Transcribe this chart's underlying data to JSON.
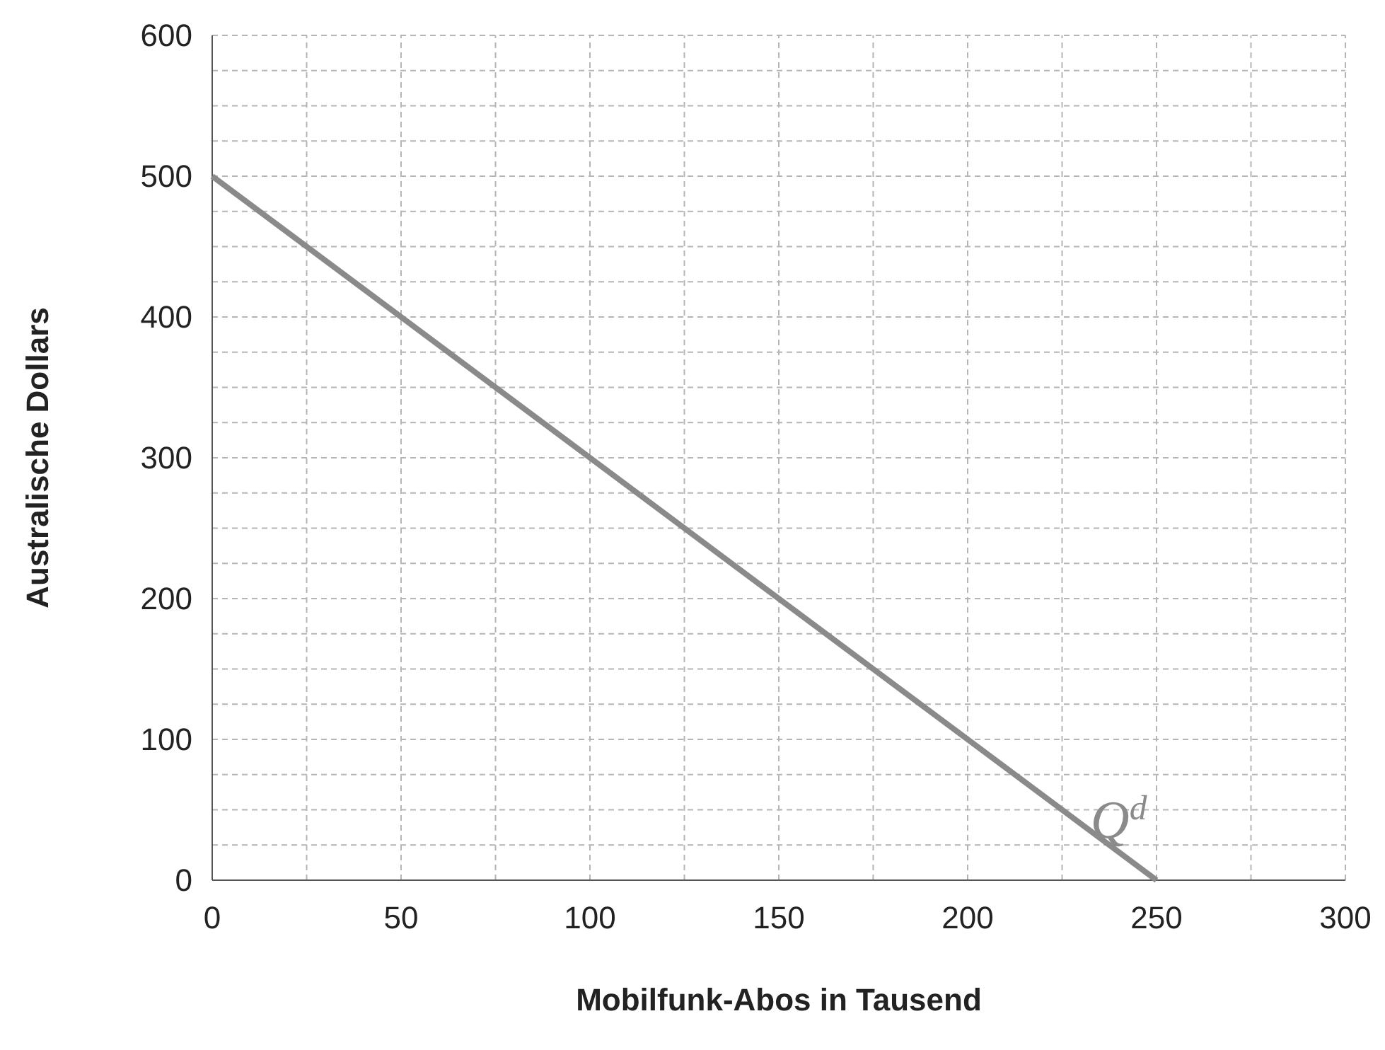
{
  "chart_data": {
    "type": "line",
    "xlabel": "Mobilfunk-Abos in Tausend",
    "ylabel": "Australische Dollars",
    "x": [
      0,
      250
    ],
    "series": [
      {
        "color": "#8a8a8a",
        "values": [
          500,
          0
        ]
      }
    ],
    "xlim": [
      0,
      300
    ],
    "ylim": [
      0,
      600
    ],
    "xticks": [
      0,
      {
        "value": 25,
        "label": null
      },
      50,
      {
        "value": 75,
        "label": null
      },
      100,
      {
        "value": 125,
        "label": null
      },
      150,
      {
        "value": 175,
        "label": null
      },
      200,
      {
        "value": 225,
        "label": null
      },
      250,
      {
        "value": 275,
        "label": null
      },
      300
    ],
    "yticks": [
      0,
      {
        "value": 25,
        "label": null
      },
      {
        "value": 50,
        "label": null
      },
      {
        "value": 75,
        "label": null
      },
      100,
      {
        "value": 125,
        "label": null
      },
      {
        "value": 150,
        "label": null
      },
      {
        "value": 175,
        "label": null
      },
      200,
      {
        "value": 225,
        "label": null
      },
      {
        "value": 250,
        "label": null
      },
      {
        "value": 275,
        "label": null
      },
      300,
      {
        "value": 325,
        "label": null
      },
      {
        "value": 350,
        "label": null
      },
      {
        "value": 375,
        "label": null
      },
      400,
      {
        "value": 425,
        "label": null
      },
      {
        "value": 450,
        "label": null
      },
      {
        "value": 475,
        "label": null
      },
      500,
      {
        "value": 525,
        "label": null
      },
      {
        "value": 550,
        "label": null
      },
      {
        "value": 575,
        "label": null
      },
      600
    ],
    "grid": true,
    "line_style": "solid",
    "marker": "none",
    "annotations": [
      "Q$^{d}$"
    ]
  }
}
